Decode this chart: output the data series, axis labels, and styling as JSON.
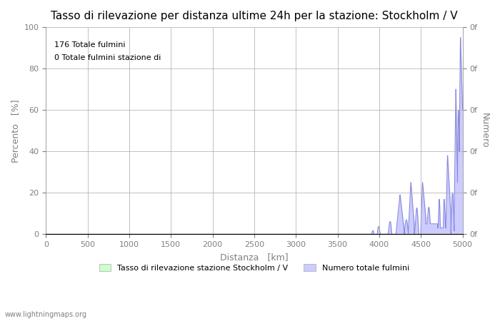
{
  "title": "Tasso di rilevazione per distanza ultime 24h per la stazione: Stockholm / V",
  "xlabel": "Distanza   [km]",
  "ylabel_left": "Percento   [%]",
  "ylabel_right": "Numero",
  "annotation_line1": "176 Totale fulmini",
  "annotation_line2": "0 Totale fulmini stazione di",
  "legend_label1": "Tasso di rilevazione stazione Stockholm / V",
  "legend_label2": "Numero totale fulmini",
  "watermark": "www.lightningmaps.org",
  "xlim": [
    0,
    5000
  ],
  "ylim": [
    0,
    100
  ],
  "x_ticks": [
    0,
    500,
    1000,
    1500,
    2000,
    2500,
    3000,
    3500,
    4000,
    4500,
    5000
  ],
  "y_ticks_left": [
    0,
    20,
    40,
    60,
    80,
    100
  ],
  "background_color": "#ffffff",
  "grid_color": "#aaaaaa",
  "fill_color": "#ccccff",
  "line_color": "#8888dd",
  "title_fontsize": 11,
  "label_fontsize": 9,
  "tick_fontsize": 8,
  "legend_color1": "#ccffcc",
  "legend_color2": "#ccccff"
}
